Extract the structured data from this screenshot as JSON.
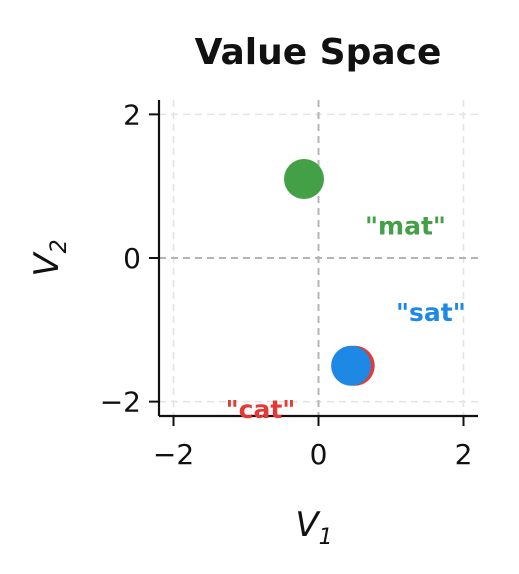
{
  "chart_data": {
    "type": "scatter",
    "title": "Value Space",
    "xlabel": "V",
    "xlabel_sub": "1",
    "ylabel": "V",
    "ylabel_sub": "2",
    "xlim": [
      -2.2,
      2.2
    ],
    "ylim": [
      -2.2,
      2.2
    ],
    "xticks": [
      -2,
      0,
      2
    ],
    "yticks": [
      -2,
      0,
      2
    ],
    "xtick_labels": [
      "−2",
      "0",
      "2"
    ],
    "ytick_labels": [
      "−2",
      "0",
      "2"
    ],
    "grid": true,
    "points": [
      {
        "label": "\"cat\"",
        "x": 0.5,
        "y": -1.5,
        "color": "#e53935",
        "label_x": -0.8,
        "label_y": -2.1
      },
      {
        "label": "\"sat\"",
        "x": 0.45,
        "y": -1.5,
        "color": "#1e88e5",
        "label_x": 1.55,
        "label_y": -0.75
      },
      {
        "label": "\"mat\"",
        "x": -0.2,
        "y": 1.1,
        "color": "#43a047",
        "label_x": 1.2,
        "label_y": 0.45
      }
    ]
  }
}
